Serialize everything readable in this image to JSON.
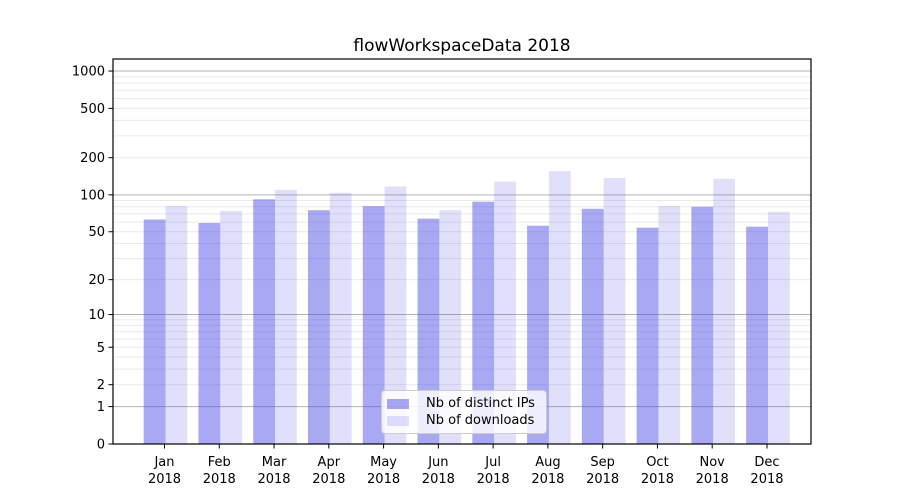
{
  "chart_data": {
    "type": "bar",
    "title": "flowWorkspaceData 2018",
    "year": "2018",
    "categories": [
      "Jan",
      "Feb",
      "Mar",
      "Apr",
      "May",
      "Jun",
      "Jul",
      "Aug",
      "Sep",
      "Oct",
      "Nov",
      "Dec"
    ],
    "series": [
      {
        "name": "Nb of distinct IPs",
        "color": "rgba(70,70,230,0.47)",
        "values": [
          63,
          59,
          92,
          75,
          81,
          64,
          88,
          56,
          77,
          54,
          80,
          55
        ]
      },
      {
        "name": "Nb of downloads",
        "color": "rgba(70,70,230,0.17)",
        "values": [
          81,
          74,
          110,
          104,
          117,
          75,
          128,
          156,
          137,
          81,
          135,
          73
        ]
      }
    ],
    "y_axis": {
      "scale": "log1p",
      "ticks": [
        0,
        1,
        2,
        5,
        10,
        20,
        50,
        100,
        200,
        500,
        1000
      ],
      "ylim": [
        0,
        1250
      ]
    },
    "x_axis": {
      "tick_label_format": "month newline year"
    },
    "grid": {
      "major_color": "#b3b3b3",
      "minor_color": "#eaeaea"
    },
    "legend_position": "lower center",
    "axis_color": "#000000",
    "background_color": "#ffffff"
  }
}
